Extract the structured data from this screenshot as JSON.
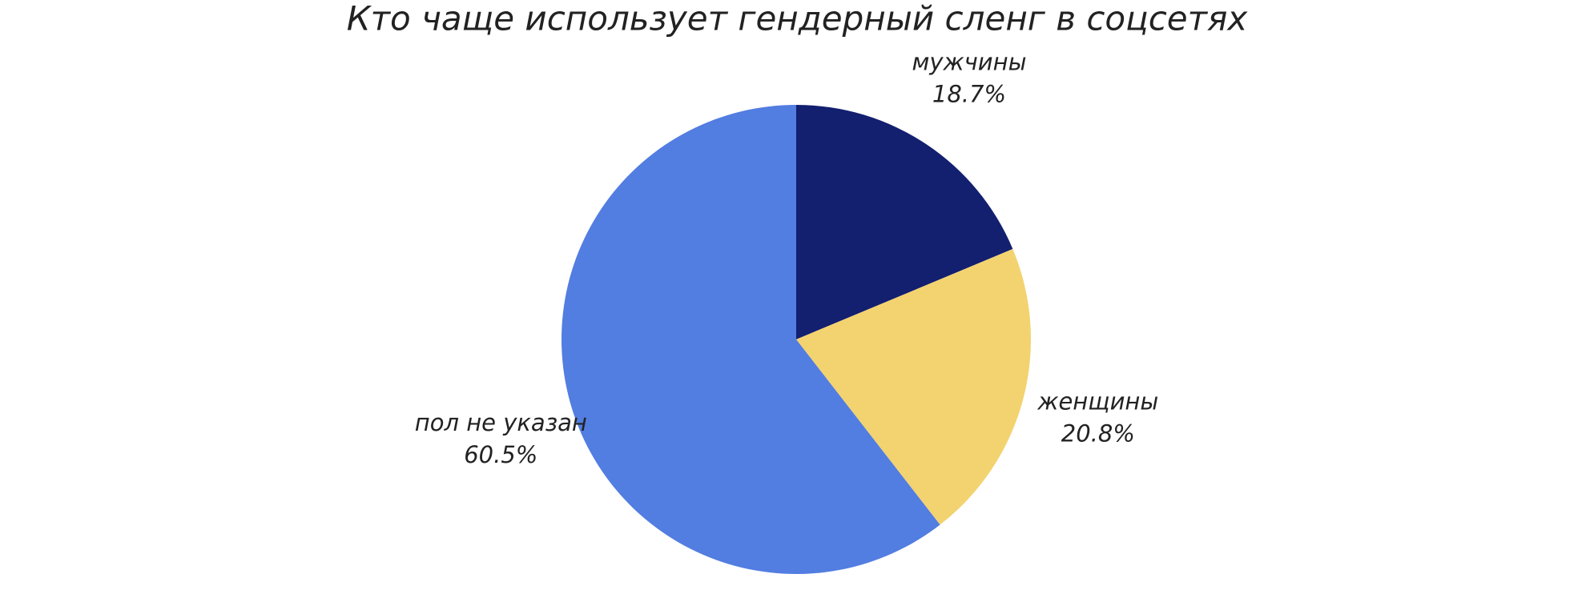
{
  "chart_data": {
    "type": "pie",
    "title": "Кто чаще использует гендерный сленг в соцсетях",
    "categories": [
      "мужчины",
      "женщины",
      "пол не указан"
    ],
    "values": [
      18.7,
      20.8,
      60.5
    ],
    "value_labels": [
      "18.7%",
      "20.8%",
      "60.5%"
    ],
    "colors": [
      "#131f6f",
      "#f3d36f",
      "#527de1"
    ]
  }
}
